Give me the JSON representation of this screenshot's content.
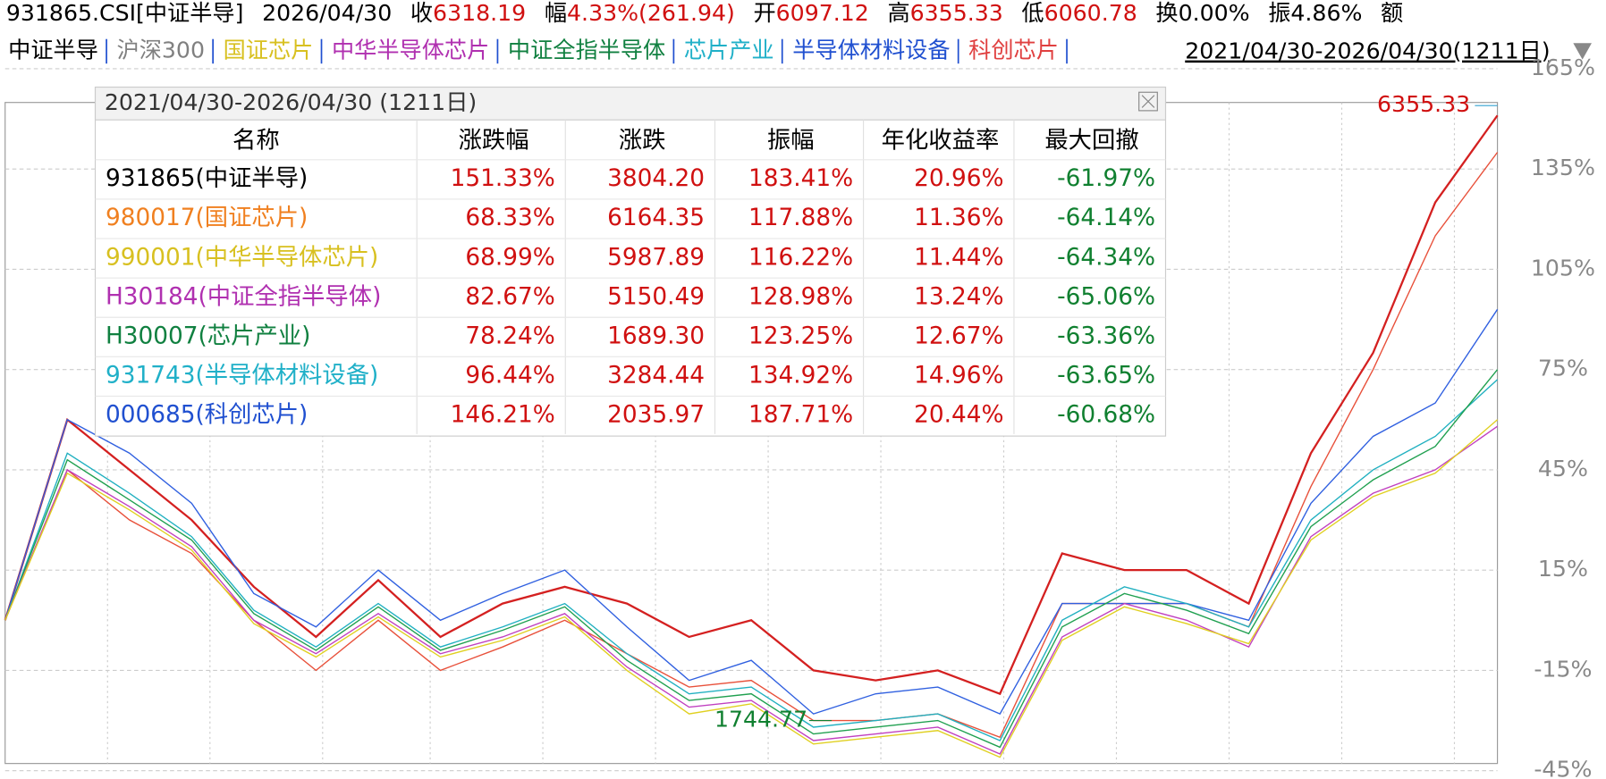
{
  "header": [
    {
      "text": "931865.CSI[中证半导]",
      "color": "#000000"
    },
    {
      "text": "2026/04/30",
      "color": "#000000"
    },
    {
      "text": "收",
      "color": "#000000"
    },
    {
      "text": "6318.19",
      "color": "#d01010"
    },
    {
      "text": "幅",
      "color": "#000000"
    },
    {
      "text": "4.33%(261.94)",
      "color": "#d01010"
    },
    {
      "text": "开",
      "color": "#000000"
    },
    {
      "text": "6097.12",
      "color": "#d01010"
    },
    {
      "text": "高",
      "color": "#000000"
    },
    {
      "text": "6355.33",
      "color": "#d01010"
    },
    {
      "text": "低",
      "color": "#000000"
    },
    {
      "text": "6060.78",
      "color": "#d01010"
    },
    {
      "text": "换",
      "color": "#000000"
    },
    {
      "text": "0.00%",
      "color": "#000000"
    },
    {
      "text": "振",
      "color": "#000000"
    },
    {
      "text": "4.86%",
      "color": "#000000"
    },
    {
      "text": "额",
      "color": "#000000"
    }
  ],
  "range": "2021/04/30-2026/04/30(1211日)",
  "table": {
    "title": "2021/04/30-2026/04/30 (1211日)",
    "columns": [
      "名称",
      "涨跌幅",
      "涨跌",
      "振幅",
      "年化收益率",
      "最大回撤"
    ],
    "rows": [
      {
        "color": "#000000",
        "cells": [
          "931865(中证半导)",
          "151.33%",
          "3804.20",
          "183.41%",
          "20.96%",
          "-61.97%"
        ]
      },
      {
        "color": "#f08020",
        "cells": [
          "980017(国证芯片)",
          "68.33%",
          "6164.35",
          "117.88%",
          "11.36%",
          "-64.14%"
        ]
      },
      {
        "color": "#d8c020",
        "cells": [
          "990001(中华半导体芯片)",
          "68.99%",
          "5987.89",
          "116.22%",
          "11.44%",
          "-64.34%"
        ]
      },
      {
        "color": "#b030b0",
        "cells": [
          "H30184(中证全指半导体)",
          "82.67%",
          "5150.49",
          "128.98%",
          "13.24%",
          "-65.06%"
        ]
      },
      {
        "color": "#108040",
        "cells": [
          "H30007(芯片产业)",
          "78.24%",
          "1689.30",
          "123.25%",
          "12.67%",
          "-63.36%"
        ]
      },
      {
        "color": "#20b0c8",
        "cells": [
          "931743(半导体材料设备)",
          "96.44%",
          "3284.44",
          "134.92%",
          "14.96%",
          "-63.65%"
        ]
      },
      {
        "color": "#2050d0",
        "cells": [
          "000685(科创芯片)",
          "146.21%",
          "2035.97",
          "187.71%",
          "20.44%",
          "-60.68%"
        ]
      }
    ]
  },
  "chart_data": {
    "type": "line",
    "legend": [
      {
        "name": "中证半导",
        "color": "#000000"
      },
      {
        "name": "沪深300",
        "color": "#808080"
      },
      {
        "name": "国证芯片",
        "color": "#d8c020"
      },
      {
        "name": "中华半导体芯片",
        "color": "#b030b0"
      },
      {
        "name": "中证全指半导体",
        "color": "#108040"
      },
      {
        "name": "芯片产业",
        "color": "#20b0c8"
      },
      {
        "name": "半导体材料设备",
        "color": "#2050d0"
      },
      {
        "name": "科创芯片",
        "color": "#e04040"
      }
    ],
    "series": [
      {
        "color": "#d42020",
        "values": [
          0,
          60,
          45,
          30,
          10,
          -5,
          12,
          -5,
          5,
          10,
          5,
          -5,
          0,
          -15,
          -18,
          -15,
          -22,
          20,
          15,
          15,
          5,
          50,
          80,
          125,
          151
        ]
      },
      {
        "color": "#e8503a",
        "values": [
          0,
          45,
          30,
          20,
          0,
          -15,
          0,
          -15,
          -8,
          0,
          -10,
          -20,
          -18,
          -30,
          -30,
          -28,
          -35,
          5,
          5,
          5,
          -2,
          40,
          75,
          115,
          140
        ]
      },
      {
        "color": "#3060e0",
        "values": [
          0,
          60,
          50,
          35,
          8,
          -2,
          15,
          0,
          8,
          15,
          -2,
          -18,
          -12,
          -28,
          -22,
          -20,
          -28,
          5,
          5,
          5,
          0,
          35,
          55,
          65,
          93
        ]
      },
      {
        "color": "#20b0c0",
        "values": [
          0,
          50,
          38,
          25,
          3,
          -8,
          5,
          -8,
          -2,
          5,
          -10,
          -22,
          -20,
          -32,
          -30,
          -28,
          -36,
          0,
          10,
          5,
          -2,
          30,
          45,
          55,
          72
        ]
      },
      {
        "color": "#20a050",
        "values": [
          0,
          48,
          36,
          24,
          2,
          -9,
          4,
          -9,
          -3,
          4,
          -12,
          -24,
          -22,
          -34,
          -32,
          -30,
          -38,
          -2,
          8,
          3,
          -4,
          28,
          42,
          52,
          75
        ]
      },
      {
        "color": "#c040c0",
        "values": [
          0,
          45,
          34,
          22,
          0,
          -10,
          2,
          -10,
          -5,
          2,
          -14,
          -26,
          -24,
          -36,
          -34,
          -32,
          -40,
          -5,
          5,
          0,
          -8,
          25,
          38,
          45,
          58
        ]
      },
      {
        "color": "#e0d020",
        "values": [
          0,
          44,
          33,
          21,
          -1,
          -11,
          1,
          -11,
          -6,
          1,
          -15,
          -28,
          -25,
          -37,
          -35,
          -33,
          -41,
          -6,
          4,
          -1,
          -7,
          24,
          37,
          44,
          60
        ]
      }
    ],
    "ylim": [
      -45,
      165
    ],
    "yticks": [
      {
        "value": 165,
        "label": "165%"
      },
      {
        "value": 135,
        "label": "135%"
      },
      {
        "value": 105,
        "label": "105%"
      },
      {
        "value": 75,
        "label": "75%"
      },
      {
        "value": 45,
        "label": "45%"
      },
      {
        "value": 15,
        "label": "15%"
      },
      {
        "value": -15,
        "label": "-15%"
      },
      {
        "value": -45,
        "label": "-45%"
      }
    ],
    "grid": true,
    "annotations": [
      {
        "text": "6355.33",
        "color": "#d01010"
      },
      {
        "text": "1744.77",
        "color": "#108030"
      }
    ]
  }
}
